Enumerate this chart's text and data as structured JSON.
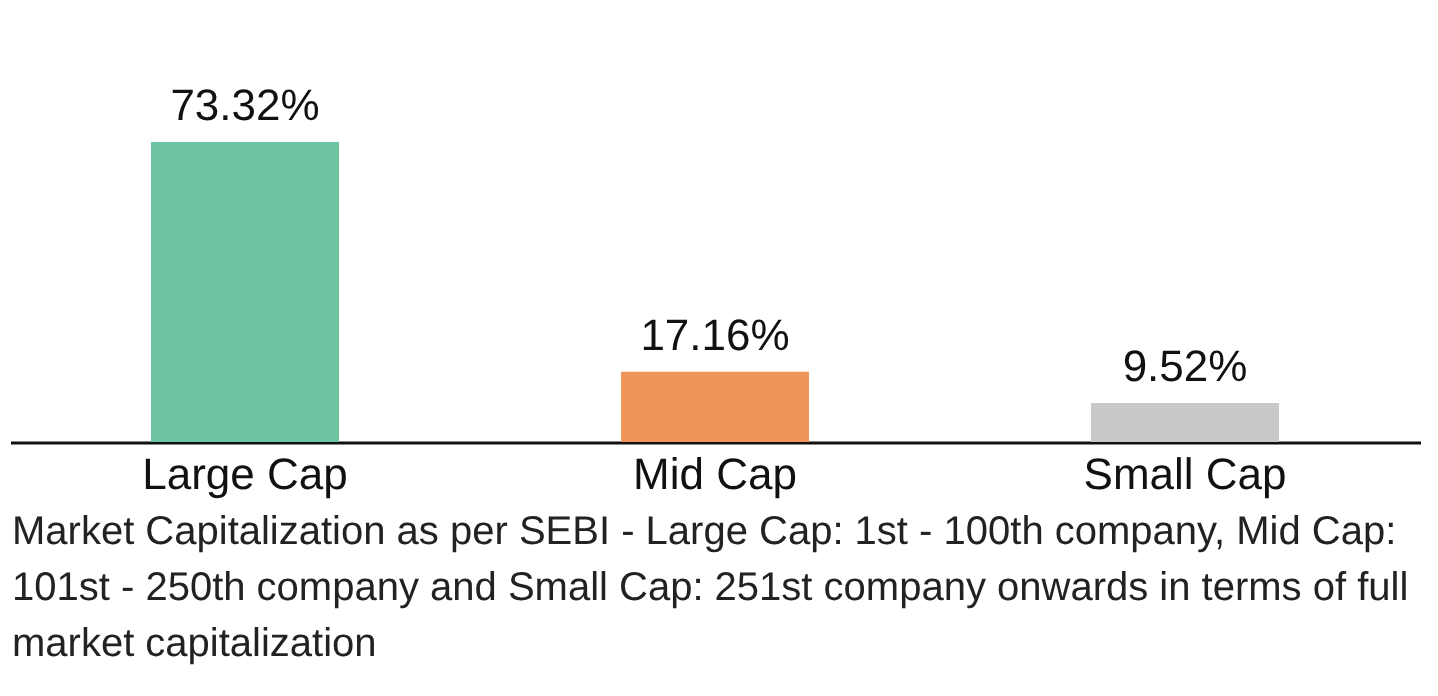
{
  "chart_data": {
    "type": "bar",
    "categories": [
      "Large Cap",
      "Mid Cap",
      "Small Cap"
    ],
    "values": [
      73.32,
      17.16,
      9.52
    ],
    "colors": [
      "#6cc4a0",
      "#f0955a",
      "#c8c8c8"
    ],
    "value_labels": [
      "73.32%",
      "17.16%",
      "9.52%"
    ],
    "annotations": [
      "Market Capitalization as per SEBI - Large Cap: 1st - 100th company, Mid Cap: 101st - 250th company and Small Cap: 251st company onwards in terms of full market capitalization"
    ]
  }
}
